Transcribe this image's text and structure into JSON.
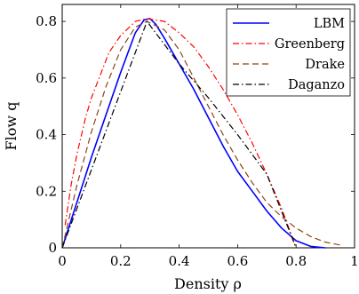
{
  "chart_data": {
    "type": "line",
    "xlabel": "Density ρ",
    "ylabel": "Flow q",
    "xlim": [
      0,
      1
    ],
    "ylim": [
      0,
      0.86
    ],
    "xticks": [
      0,
      0.2,
      0.4,
      0.6,
      0.8,
      1
    ],
    "xtick_labels": [
      "0",
      "0.2",
      "0.4",
      "0.6",
      "0.8",
      "1"
    ],
    "yticks": [
      0,
      0.2,
      0.4,
      0.6,
      0.8
    ],
    "ytick_labels": [
      "0",
      "0.2",
      "0.4",
      "0.6",
      "0.8"
    ],
    "grid": false,
    "legend_position": "top-right",
    "series": [
      {
        "name": "LBM",
        "color": "#0000ff",
        "dash": "solid",
        "points": [
          [
            0,
            0
          ],
          [
            0.05,
            0.16
          ],
          [
            0.1,
            0.32
          ],
          [
            0.15,
            0.47
          ],
          [
            0.2,
            0.62
          ],
          [
            0.25,
            0.76
          ],
          [
            0.28,
            0.805
          ],
          [
            0.3,
            0.81
          ],
          [
            0.32,
            0.79
          ],
          [
            0.35,
            0.74
          ],
          [
            0.4,
            0.65
          ],
          [
            0.45,
            0.56
          ],
          [
            0.5,
            0.46
          ],
          [
            0.55,
            0.36
          ],
          [
            0.6,
            0.27
          ],
          [
            0.65,
            0.2
          ],
          [
            0.7,
            0.13
          ],
          [
            0.75,
            0.07
          ],
          [
            0.8,
            0.025
          ],
          [
            0.85,
            0.005
          ],
          [
            0.9,
            0.0
          ]
        ]
      },
      {
        "name": "Greenberg",
        "color": "#ff0000",
        "dash": "dashdot",
        "points": [
          [
            0.01,
            0.08
          ],
          [
            0.03,
            0.22
          ],
          [
            0.05,
            0.33
          ],
          [
            0.08,
            0.46
          ],
          [
            0.1,
            0.53
          ],
          [
            0.13,
            0.61
          ],
          [
            0.16,
            0.69
          ],
          [
            0.2,
            0.75
          ],
          [
            0.25,
            0.8
          ],
          [
            0.29,
            0.81
          ],
          [
            0.35,
            0.8
          ],
          [
            0.4,
            0.76
          ],
          [
            0.45,
            0.71
          ],
          [
            0.5,
            0.64
          ],
          [
            0.55,
            0.56
          ],
          [
            0.6,
            0.47
          ],
          [
            0.65,
            0.37
          ],
          [
            0.7,
            0.26
          ],
          [
            0.75,
            0.14
          ],
          [
            0.8,
            0.0
          ]
        ]
      },
      {
        "name": "Drake",
        "color": "#8b4513",
        "dash": "dashed",
        "points": [
          [
            0,
            0
          ],
          [
            0.05,
            0.22
          ],
          [
            0.1,
            0.41
          ],
          [
            0.15,
            0.57
          ],
          [
            0.2,
            0.7
          ],
          [
            0.25,
            0.78
          ],
          [
            0.29,
            0.8
          ],
          [
            0.35,
            0.77
          ],
          [
            0.4,
            0.7
          ],
          [
            0.45,
            0.6
          ],
          [
            0.5,
            0.5
          ],
          [
            0.55,
            0.4
          ],
          [
            0.6,
            0.31
          ],
          [
            0.65,
            0.23
          ],
          [
            0.7,
            0.16
          ],
          [
            0.75,
            0.11
          ],
          [
            0.8,
            0.07
          ],
          [
            0.85,
            0.04
          ],
          [
            0.9,
            0.02
          ],
          [
            0.95,
            0.01
          ]
        ]
      },
      {
        "name": "Daganzo",
        "color": "#000000",
        "dash": "dashdot",
        "points": [
          [
            0,
            0
          ],
          [
            0.29,
            0.8
          ],
          [
            0.4,
            0.65
          ],
          [
            0.5,
            0.53
          ],
          [
            0.6,
            0.4
          ],
          [
            0.7,
            0.26
          ],
          [
            0.8,
            0.0
          ]
        ]
      }
    ]
  }
}
